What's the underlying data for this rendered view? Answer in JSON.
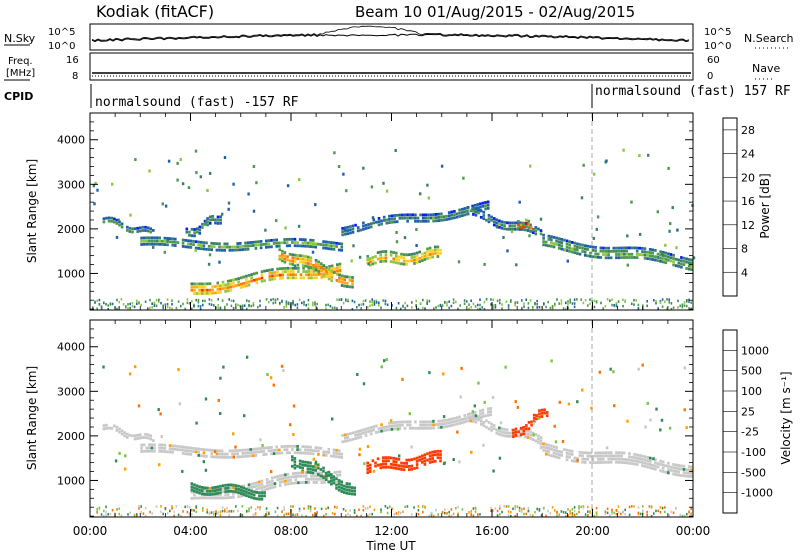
{
  "header": {
    "station": "Kodiak (fitACF)",
    "beam_date": "Beam 10 01/Aug/2015 - 02/Aug/2015"
  },
  "noise_panel": {
    "left_label": "N.Sky",
    "right_label": "N.Search",
    "left_ticks": [
      "10^5",
      "10^0"
    ],
    "right_ticks": [
      "10^5",
      "10^0"
    ]
  },
  "freq_panel": {
    "left_label": "Freq.",
    "left_units": "[MHz]",
    "right_label": "Nave",
    "left_ticks": [
      "16",
      "8"
    ],
    "right_ticks": [
      "60",
      "0"
    ]
  },
  "cpid_panel": {
    "label": "CPID",
    "mode1": "normalsound (fast) -157 RF",
    "mode2": "normalsound (fast) 157 RF",
    "switch_time": 20.0
  },
  "chart_data": [
    {
      "type": "heatmap",
      "panel": "power",
      "ylabel": "Slant Range [km]",
      "xlabel": "",
      "xticks": [
        "00:00",
        "04:00",
        "08:00",
        "12:00",
        "16:00",
        "20:00",
        "00:00"
      ],
      "xlim": [
        0,
        24
      ],
      "yticks": [
        "1000",
        "2000",
        "3000",
        "4000"
      ],
      "ylim": [
        180,
        4600
      ],
      "colorbar": {
        "label": "Power [dB]",
        "ticks": [
          "4",
          "8",
          "12",
          "16",
          "20",
          "24",
          "28"
        ],
        "range": [
          0,
          30
        ],
        "colors": [
          "#0a1ee8",
          "#1e5fae",
          "#3a7f6a",
          "#4e9a4a",
          "#8dc63f",
          "#ffd21e",
          "#ffa81e",
          "#ff7a00",
          "#f53a00",
          "#e00000"
        ]
      },
      "bands": [
        {
          "x0": 0.5,
          "x1": 2.5,
          "r_start": 2200,
          "r_end": 1900,
          "width": 120,
          "value": 10
        },
        {
          "x0": 2.0,
          "x1": 10.0,
          "r_start": 1700,
          "r_end": 1650,
          "width": 150,
          "value": 12
        },
        {
          "x0": 3.8,
          "x1": 5.2,
          "r_start": 1900,
          "r_end": 2300,
          "width": 150,
          "value": 9
        },
        {
          "x0": 4.0,
          "x1": 10.0,
          "r_start": 650,
          "r_end": 1150,
          "width": 280,
          "value": 22
        },
        {
          "x0": 7.5,
          "x1": 10.5,
          "r_start": 1500,
          "r_end": 800,
          "width": 220,
          "value": 24
        },
        {
          "x0": 10.0,
          "x1": 16.0,
          "r_start": 2000,
          "r_end": 2500,
          "width": 200,
          "value": 8
        },
        {
          "x0": 11.0,
          "x1": 14.0,
          "r_start": 1300,
          "r_end": 1450,
          "width": 260,
          "value": 20
        },
        {
          "x0": 15.0,
          "x1": 18.0,
          "r_start": 2400,
          "r_end": 1900,
          "width": 150,
          "value": 9
        },
        {
          "x0": 18.0,
          "x1": 24.0,
          "r_start": 1700,
          "r_end": 1250,
          "width": 260,
          "value": 12
        },
        {
          "x0": 17.0,
          "x1": 17.6,
          "r_start": 2100,
          "r_end": 2100,
          "width": 150,
          "value": 26
        }
      ]
    },
    {
      "type": "heatmap",
      "panel": "velocity",
      "ylabel": "Slant Range [km]",
      "xlabel": "Time UT",
      "xticks": [
        "00:00",
        "04:00",
        "08:00",
        "12:00",
        "16:00",
        "20:00",
        "00:00"
      ],
      "xlim": [
        0,
        24
      ],
      "yticks": [
        "1000",
        "2000",
        "3000",
        "4000"
      ],
      "ylim": [
        180,
        4600
      ],
      "colorbar": {
        "label": "Velocity [m s⁻¹]",
        "ticks": [
          "1000",
          "500",
          "100",
          "25",
          "-25",
          "-100",
          "-500",
          "-1000"
        ],
        "colors": [
          "#1432c8",
          "#1e5fae",
          "#2e8b57",
          "#79c843",
          "#c8c8c8",
          "#ffa000",
          "#ff7000",
          "#ff3a00",
          "#e00000"
        ]
      },
      "bands": [
        {
          "x0": 0.5,
          "x1": 2.5,
          "r_start": 2200,
          "r_end": 1900,
          "width": 120,
          "value": 0
        },
        {
          "x0": 2.0,
          "x1": 10.0,
          "r_start": 1700,
          "r_end": 1650,
          "width": 150,
          "value": 0
        },
        {
          "x0": 4.0,
          "x1": 10.0,
          "r_start": 650,
          "r_end": 1150,
          "width": 280,
          "value": 0
        },
        {
          "x0": 4.0,
          "x1": 7.0,
          "r_start": 850,
          "r_end": 700,
          "width": 200,
          "value": 80
        },
        {
          "x0": 8.0,
          "x1": 10.5,
          "r_start": 1500,
          "r_end": 800,
          "width": 220,
          "value": 200
        },
        {
          "x0": 10.0,
          "x1": 16.0,
          "r_start": 2000,
          "r_end": 2500,
          "width": 200,
          "value": 0
        },
        {
          "x0": 11.0,
          "x1": 14.0,
          "r_start": 1300,
          "r_end": 1500,
          "width": 280,
          "value": -500
        },
        {
          "x0": 15.0,
          "x1": 18.0,
          "r_start": 2400,
          "r_end": 1900,
          "width": 150,
          "value": 0
        },
        {
          "x0": 16.8,
          "x1": 18.2,
          "r_start": 2000,
          "r_end": 2600,
          "width": 200,
          "value": -400
        },
        {
          "x0": 18.0,
          "x1": 24.0,
          "r_start": 1700,
          "r_end": 1250,
          "width": 260,
          "value": 0
        }
      ]
    }
  ]
}
